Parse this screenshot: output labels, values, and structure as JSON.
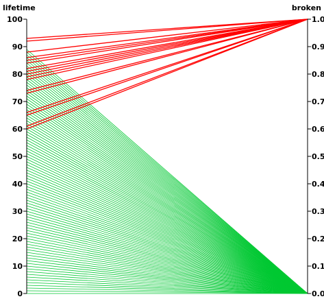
{
  "chart_data": {
    "type": "parallel_coordinates",
    "axes": [
      {
        "name": "lifetime",
        "range": [
          0,
          100
        ],
        "ticks": [
          "0",
          "10",
          "20",
          "30",
          "40",
          "50",
          "60",
          "70",
          "80",
          "90",
          "100"
        ]
      },
      {
        "name": "broken",
        "range": [
          0.0,
          1.0
        ],
        "ticks": [
          "0.0",
          "0.1",
          "0.2",
          "0.3",
          "0.4",
          "0.5",
          "0.6",
          "0.7",
          "0.8",
          "0.9",
          "1.0"
        ]
      }
    ],
    "colors": {
      "broken_1": "#ff0000",
      "broken_0": "#00c832"
    },
    "series": [
      {
        "broken": 1,
        "lifetimes": [
          60,
          61,
          65,
          66,
          73,
          74,
          78,
          79,
          80,
          81,
          82,
          84,
          85,
          86,
          88,
          92,
          93
        ]
      },
      {
        "broken": 0,
        "lifetimes": [
          0,
          1,
          2,
          3,
          4,
          5,
          6,
          7,
          8,
          9,
          10,
          11,
          12,
          13,
          14,
          15,
          16,
          17,
          18,
          19,
          20,
          21,
          22,
          23,
          24,
          25,
          26,
          27,
          28,
          29,
          30,
          31,
          32,
          33,
          34,
          35,
          36,
          37,
          38,
          39,
          40,
          41,
          42,
          43,
          44,
          45,
          46,
          47,
          48,
          49,
          50,
          51,
          52,
          53,
          54,
          55,
          56,
          57,
          58,
          59,
          60,
          61,
          62,
          63,
          64,
          65,
          66,
          67,
          68,
          69,
          70,
          71,
          72,
          73,
          74,
          75,
          76,
          77,
          78,
          79,
          80,
          81,
          82,
          83,
          84,
          85,
          86,
          87,
          88,
          89
        ]
      }
    ]
  }
}
